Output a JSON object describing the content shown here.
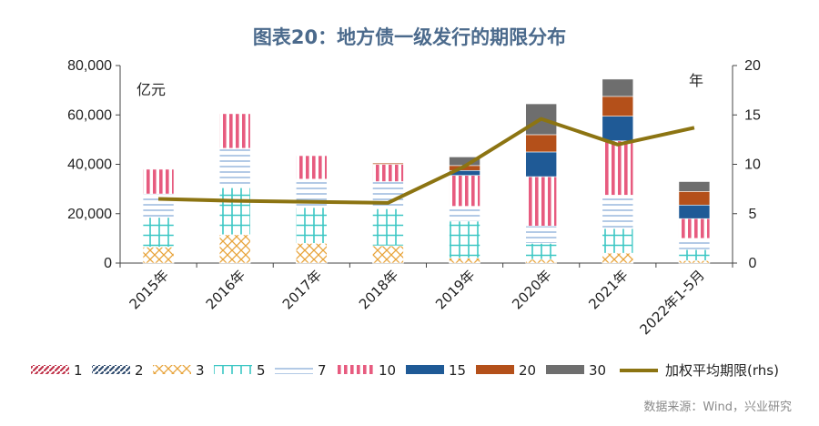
{
  "chart_data": {
    "type": "bar",
    "title": "图表20：地方债一级发行的期限分布",
    "left_unit": "亿元",
    "right_unit": "年",
    "source": "数据来源：Wind，兴业研究",
    "categories": [
      "2015年",
      "2016年",
      "2017年",
      "2018年",
      "2019年",
      "2020年",
      "2021年",
      "2022年1-5月"
    ],
    "ylim": [
      0,
      80000
    ],
    "yticks": [
      "0",
      "20,000",
      "40,000",
      "60,000",
      "80,000"
    ],
    "y2lim": [
      0,
      20
    ],
    "y2ticks": [
      "0",
      "5",
      "10",
      "15",
      "20"
    ],
    "stacked": true,
    "series": [
      {
        "name": "1",
        "color": "#c0334a",
        "pattern": "diag-red",
        "values": [
          0,
          0,
          0,
          0,
          0,
          0,
          0,
          0
        ]
      },
      {
        "name": "2",
        "color": "#2f4b6e",
        "pattern": "diag-navy",
        "values": [
          0,
          0,
          0,
          0,
          0,
          0,
          0,
          0
        ]
      },
      {
        "name": "3",
        "color": "#e8a33a",
        "pattern": "cross-orange",
        "values": [
          6500,
          11500,
          8000,
          7000,
          2000,
          1500,
          4000,
          1000
        ]
      },
      {
        "name": "5",
        "color": "#3cc7c4",
        "pattern": "grid-teal",
        "values": [
          12000,
          19000,
          14500,
          15000,
          15000,
          6500,
          10000,
          4500
        ]
      },
      {
        "name": "7",
        "color": "#8aaed8",
        "pattern": "hlines-blue",
        "values": [
          9500,
          16000,
          11500,
          11000,
          6000,
          7000,
          13500,
          4500
        ]
      },
      {
        "name": "10",
        "color": "#e75b7f",
        "pattern": "vstripes-pink",
        "values": [
          10000,
          14000,
          9500,
          7000,
          12500,
          20000,
          22000,
          8000
        ]
      },
      {
        "name": "15",
        "color": "#1f5a96",
        "pattern": "solid",
        "values": [
          0,
          0,
          0,
          0,
          2000,
          10000,
          10000,
          5500
        ]
      },
      {
        "name": "20",
        "color": "#b4501a",
        "pattern": "solid",
        "values": [
          0,
          0,
          0,
          500,
          2000,
          7000,
          8000,
          5500
        ]
      },
      {
        "name": "30",
        "color": "#6e6e6e",
        "pattern": "solid",
        "values": [
          0,
          0,
          0,
          0,
          3500,
          12500,
          7000,
          4000
        ]
      }
    ],
    "line": {
      "name": "加权平均期限(rhs)",
      "axis": "right",
      "color": "#8c7412",
      "values": [
        6.5,
        6.3,
        6.2,
        6.1,
        9.8,
        14.6,
        12.0,
        13.7
      ]
    }
  }
}
